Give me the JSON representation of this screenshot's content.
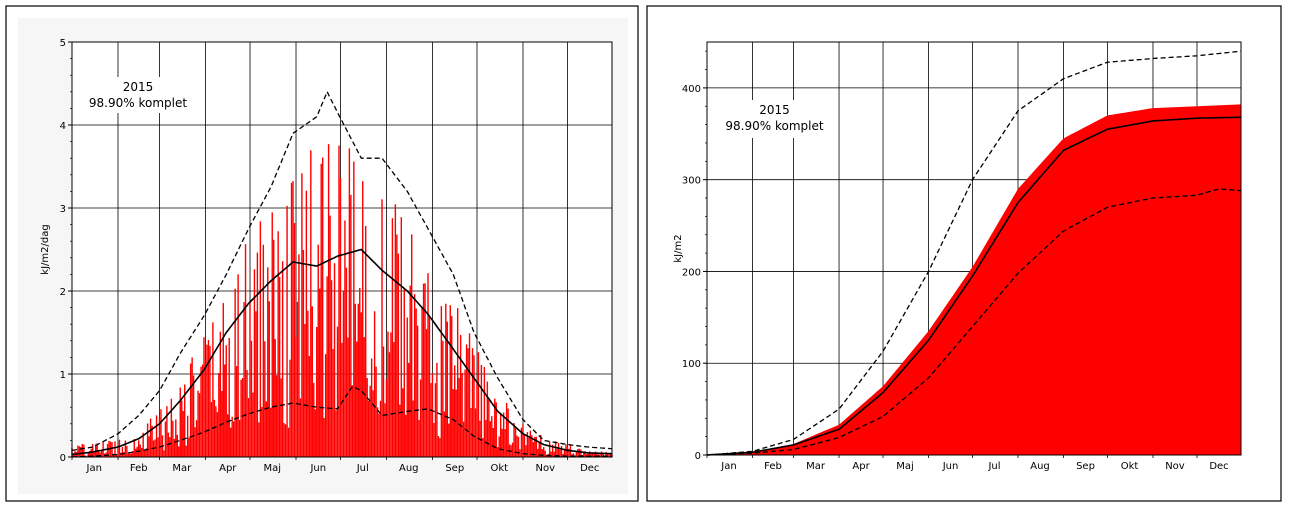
{
  "chart_data": [
    {
      "type": "bar",
      "title": "",
      "annotation": [
        "2015",
        "98.90% komplet"
      ],
      "ylabel": "kJ/m2/dag",
      "xlabel": "",
      "ylim": [
        0,
        5
      ],
      "yticks": [
        0,
        1,
        2,
        3,
        4,
        5
      ],
      "months": [
        "Jan",
        "Feb",
        "Mar",
        "Apr",
        "Maj",
        "Jun",
        "Jul",
        "Aug",
        "Sep",
        "Okt",
        "Nov",
        "Dec"
      ],
      "grid": true,
      "colors": {
        "bars": "#ff0000",
        "mean": "#000000",
        "band": "#000000"
      },
      "series": [
        {
          "name": "",
          "style": "red daily bars",
          "x": [
            15,
            46,
            74,
            105,
            135,
            166,
            196,
            227,
            258,
            288,
            319,
            349
          ],
          "values": [
            0.1,
            0.2,
            0.6,
            1.3,
            2.0,
            2.4,
            2.4,
            1.8,
            1.2,
            0.5,
            0.15,
            0.05
          ]
        },
        {
          "name": "",
          "style": "solid black line",
          "x": [
            1,
            15,
            32,
            46,
            60,
            74,
            90,
            105,
            120,
            135,
            150,
            166,
            180,
            196,
            210,
            227,
            241,
            258,
            272,
            288,
            305,
            319,
            335,
            349,
            365
          ],
          "values": [
            0.03,
            0.06,
            0.12,
            0.22,
            0.4,
            0.68,
            1.05,
            1.5,
            1.85,
            2.12,
            2.35,
            2.3,
            2.42,
            2.5,
            2.25,
            2.0,
            1.72,
            1.3,
            0.95,
            0.55,
            0.28,
            0.15,
            0.08,
            0.05,
            0.04
          ]
        },
        {
          "name": "",
          "style": "dashed black line (upper)",
          "x": [
            1,
            15,
            32,
            46,
            60,
            74,
            90,
            105,
            120,
            135,
            150,
            166,
            173,
            180,
            196,
            210,
            227,
            241,
            258,
            272,
            288,
            305,
            319,
            335,
            349,
            365
          ],
          "values": [
            0.08,
            0.12,
            0.28,
            0.5,
            0.8,
            1.25,
            1.7,
            2.2,
            2.75,
            3.25,
            3.9,
            4.1,
            4.4,
            4.15,
            3.6,
            3.6,
            3.2,
            2.75,
            2.2,
            1.5,
            0.95,
            0.45,
            0.2,
            0.15,
            0.12,
            0.1
          ]
        },
        {
          "name": "",
          "style": "dashed black line (lower)",
          "x": [
            1,
            15,
            32,
            46,
            60,
            74,
            90,
            105,
            120,
            135,
            150,
            166,
            180,
            190,
            196,
            210,
            227,
            241,
            258,
            272,
            288,
            305,
            319,
            335,
            349,
            365
          ],
          "values": [
            0.0,
            0.01,
            0.03,
            0.07,
            0.12,
            0.2,
            0.3,
            0.42,
            0.52,
            0.6,
            0.65,
            0.6,
            0.58,
            0.85,
            0.8,
            0.5,
            0.55,
            0.58,
            0.45,
            0.25,
            0.1,
            0.04,
            0.02,
            0.01,
            0.01,
            0.01
          ]
        }
      ]
    },
    {
      "type": "area",
      "title": "",
      "annotation": [
        "2015",
        "98.90% komplet"
      ],
      "ylabel": "kJ/m2",
      "xlabel": "",
      "ylim": [
        0,
        450
      ],
      "yticks": [
        0,
        100,
        200,
        300,
        400
      ],
      "months": [
        "Jan",
        "Feb",
        "Mar",
        "Apr",
        "Maj",
        "Jun",
        "Jul",
        "Aug",
        "Sep",
        "Okt",
        "Nov",
        "Dec"
      ],
      "grid": true,
      "colors": {
        "area": "#ff0000",
        "mean": "#000000",
        "band": "#000000"
      },
      "series": [
        {
          "name": "",
          "style": "red filled area",
          "x": [
            1,
            32,
            60,
            91,
            121,
            152,
            182,
            213,
            244,
            274,
            305,
            335,
            365
          ],
          "values": [
            0,
            3,
            12,
            33,
            75,
            135,
            205,
            290,
            345,
            370,
            378,
            380,
            382
          ]
        },
        {
          "name": "",
          "style": "solid black line",
          "x": [
            1,
            32,
            60,
            91,
            121,
            152,
            182,
            213,
            244,
            274,
            305,
            335,
            365
          ],
          "values": [
            0,
            3,
            11,
            28,
            68,
            125,
            195,
            275,
            332,
            355,
            364,
            367,
            368
          ]
        },
        {
          "name": "",
          "style": "dashed black line (upper)",
          "x": [
            1,
            32,
            60,
            91,
            121,
            152,
            182,
            213,
            244,
            274,
            305,
            335,
            365
          ],
          "values": [
            0,
            4,
            17,
            50,
            113,
            200,
            300,
            375,
            410,
            428,
            432,
            435,
            440
          ]
        },
        {
          "name": "",
          "style": "dashed black line (lower)",
          "x": [
            1,
            32,
            60,
            91,
            121,
            152,
            182,
            213,
            244,
            274,
            305,
            335,
            350,
            365
          ],
          "values": [
            0,
            2,
            6,
            19,
            42,
            84,
            140,
            198,
            244,
            270,
            280,
            283,
            290,
            288
          ]
        }
      ]
    }
  ]
}
